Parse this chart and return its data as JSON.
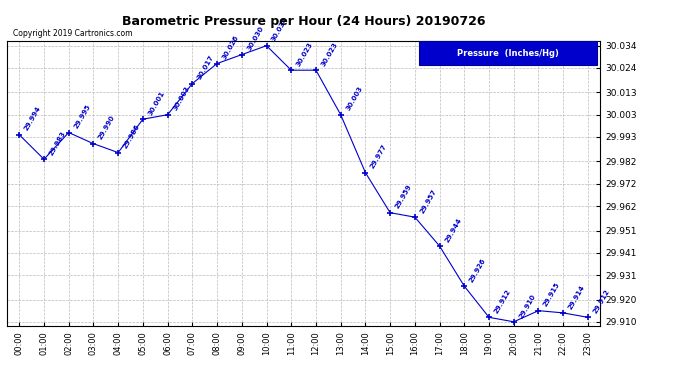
{
  "title": "Barometric Pressure per Hour (24 Hours) 20190726",
  "copyright": "Copyright 2019 Cartronics.com",
  "legend_label": "Pressure  (Inches/Hg)",
  "hours": [
    0,
    1,
    2,
    3,
    4,
    5,
    6,
    7,
    8,
    9,
    10,
    11,
    12,
    13,
    14,
    15,
    16,
    17,
    18,
    19,
    20,
    21,
    22,
    23
  ],
  "x_labels": [
    "00:00",
    "01:00",
    "02:00",
    "03:00",
    "04:00",
    "05:00",
    "06:00",
    "07:00",
    "08:00",
    "09:00",
    "10:00",
    "11:00",
    "12:00",
    "13:00",
    "14:00",
    "15:00",
    "16:00",
    "17:00",
    "18:00",
    "19:00",
    "20:00",
    "21:00",
    "22:00",
    "23:00"
  ],
  "pressure": [
    29.994,
    29.983,
    29.995,
    29.99,
    29.986,
    30.001,
    30.003,
    30.017,
    30.026,
    30.03,
    30.034,
    30.023,
    30.023,
    30.003,
    29.977,
    29.959,
    29.957,
    29.944,
    29.926,
    29.912,
    29.91,
    29.915,
    29.914,
    29.912
  ],
  "ylim_min": 29.908,
  "ylim_max": 30.036,
  "line_color": "#0000cc",
  "marker_color": "#0000cc",
  "background_color": "#ffffff",
  "grid_color": "#aaaaaa",
  "title_color": "#000000",
  "copyright_color": "#000000",
  "legend_bg": "#0000cc",
  "legend_text_color": "#ffffff",
  "annotation_color": "#0000cc",
  "yticks": [
    29.91,
    29.92,
    29.931,
    29.941,
    29.951,
    29.962,
    29.972,
    29.982,
    29.993,
    30.003,
    30.013,
    30.024,
    30.034
  ]
}
